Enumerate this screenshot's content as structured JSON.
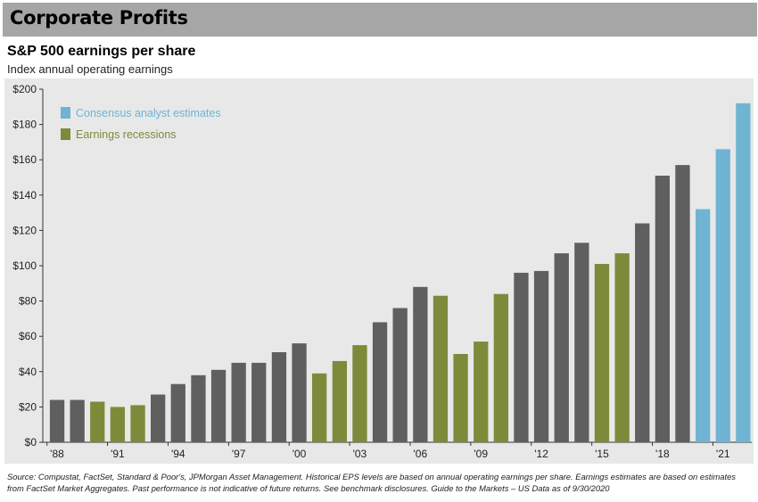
{
  "banner": {
    "title": "Corporate Profits"
  },
  "chart_data": {
    "type": "bar",
    "title": "S&P 500 earnings per share",
    "subtitle": "Index annual operating earnings",
    "ylim": [
      0,
      200
    ],
    "y_ticks": [
      "$0",
      "$20",
      "$40",
      "$60",
      "$80",
      "$100",
      "$120",
      "$140",
      "$160",
      "$180",
      "$200"
    ],
    "x_tick_labels": [
      "'88",
      "'91",
      "'94",
      "'97",
      "'00",
      "'03",
      "'06",
      "'09",
      "'12",
      "'15",
      "'18",
      "'21"
    ],
    "grid": false,
    "legend_position": "top-left",
    "legend": [
      {
        "label": "Consensus analyst estimates",
        "color": "#6fb4d2"
      },
      {
        "label": "Earnings recessions",
        "color": "#7d8a3a"
      }
    ],
    "colors": {
      "normal": "#5f5f5f",
      "recession": "#7d8a3a",
      "estimate": "#6fb4d2"
    },
    "categories": [
      "1988",
      "1989",
      "1990",
      "1991",
      "1992",
      "1993",
      "1994",
      "1995",
      "1996",
      "1997",
      "1998",
      "1999",
      "2000",
      "2001",
      "2002",
      "2003",
      "2004",
      "2005",
      "2006",
      "2007",
      "2008",
      "2009",
      "2010",
      "2011",
      "2012",
      "2013",
      "2014",
      "2015",
      "2016",
      "2017",
      "2018",
      "2019",
      "2020",
      "2021",
      "2022"
    ],
    "values": [
      24,
      24,
      23,
      20,
      21,
      27,
      33,
      38,
      41,
      45,
      45,
      51,
      56,
      39,
      46,
      55,
      68,
      76,
      88,
      83,
      50,
      57,
      84,
      96,
      97,
      107,
      113,
      101,
      107,
      124,
      151,
      157,
      132,
      166,
      192
    ],
    "bar_types": [
      "normal",
      "normal",
      "recession",
      "recession",
      "recession",
      "normal",
      "normal",
      "normal",
      "normal",
      "normal",
      "normal",
      "normal",
      "normal",
      "recession",
      "recession",
      "recession",
      "normal",
      "normal",
      "normal",
      "recession",
      "recession",
      "recession",
      "recession",
      "normal",
      "normal",
      "normal",
      "normal",
      "recession",
      "recession",
      "normal",
      "normal",
      "normal",
      "estimate",
      "estimate",
      "estimate"
    ]
  },
  "source": "Source: Compustat, FactSet, Standard & Poor's, JPMorgan Asset Management. Historical EPS levels are based on annual operating earnings per share. Earnings estimates are based on estimates from FactSet Market Aggregates. Past performance is not indicative of future returns. See benchmark disclosures. Guide to the Markets – US Data as of 9/30/2020"
}
